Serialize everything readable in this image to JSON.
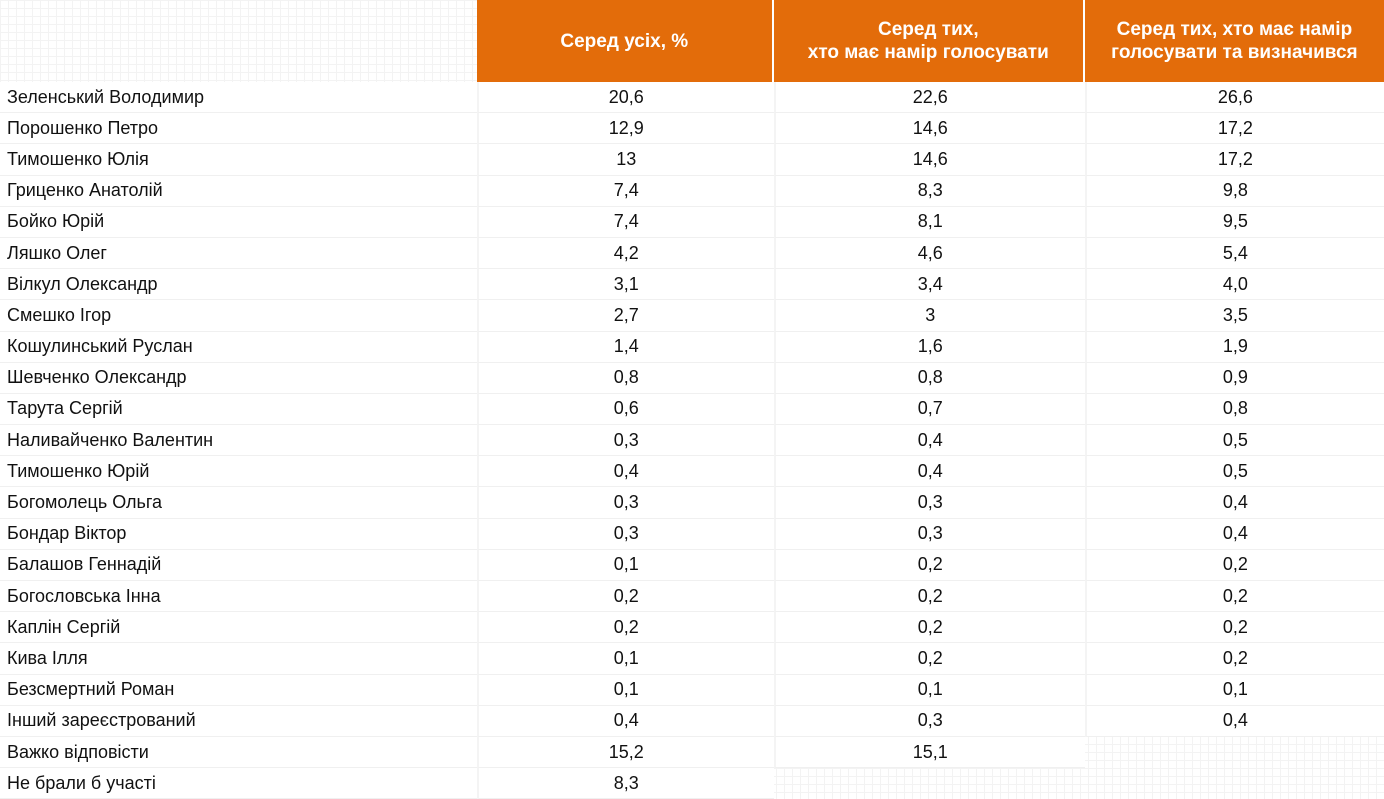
{
  "table": {
    "headers": [
      "Серед усіх, %",
      "Серед тих,\nхто має намір голосувати",
      "Серед тих, хто має намір\nголосувати та визначився"
    ],
    "rows": [
      {
        "name": "Зеленський Володимир",
        "values": [
          "20,6",
          "22,6",
          "26,6"
        ]
      },
      {
        "name": "Порошенко Петро",
        "values": [
          "12,9",
          "14,6",
          "17,2"
        ]
      },
      {
        "name": "Тимошенко Юлія",
        "values": [
          "13",
          "14,6",
          "17,2"
        ]
      },
      {
        "name": "Гриценко Анатолій",
        "values": [
          "7,4",
          "8,3",
          "9,8"
        ]
      },
      {
        "name": "Бойко Юрій",
        "values": [
          "7,4",
          "8,1",
          "9,5"
        ]
      },
      {
        "name": "Ляшко Олег",
        "values": [
          "4,2",
          "4,6",
          "5,4"
        ]
      },
      {
        "name": "Вілкул Олександр",
        "values": [
          "3,1",
          "3,4",
          "4,0"
        ]
      },
      {
        "name": "Смешко Ігор",
        "values": [
          "2,7",
          "3",
          "3,5"
        ]
      },
      {
        "name": "Кошулинський Руслан",
        "values": [
          "1,4",
          "1,6",
          "1,9"
        ]
      },
      {
        "name": "Шевченко Олександр",
        "values": [
          "0,8",
          "0,8",
          "0,9"
        ]
      },
      {
        "name": "Тарута Сергій",
        "values": [
          "0,6",
          "0,7",
          "0,8"
        ]
      },
      {
        "name": "Наливайченко Валентин",
        "values": [
          "0,3",
          "0,4",
          "0,5"
        ]
      },
      {
        "name": "Тимошенко Юрій",
        "values": [
          "0,4",
          "0,4",
          "0,5"
        ]
      },
      {
        "name": "Богомолець Ольга",
        "values": [
          "0,3",
          "0,3",
          "0,4"
        ]
      },
      {
        "name": "Бондар Віктор",
        "values": [
          "0,3",
          "0,3",
          "0,4"
        ]
      },
      {
        "name": "Балашов Геннадій",
        "values": [
          "0,1",
          "0,2",
          "0,2"
        ]
      },
      {
        "name": "Богословська Інна",
        "values": [
          "0,2",
          "0,2",
          "0,2"
        ]
      },
      {
        "name": "Каплін Сергій",
        "values": [
          "0,2",
          "0,2",
          "0,2"
        ]
      },
      {
        "name": "Кива Ілля",
        "values": [
          "0,1",
          "0,2",
          "0,2"
        ]
      },
      {
        "name": "Безсмертний Роман",
        "values": [
          "0,1",
          "0,1",
          "0,1"
        ]
      },
      {
        "name": "Інший зареєстрований",
        "values": [
          "0,4",
          "0,3",
          "0,4"
        ]
      },
      {
        "name": "Важко відповісти",
        "values": [
          "15,2",
          "15,1",
          null
        ]
      },
      {
        "name": "Не брали б участі",
        "values": [
          "8,3",
          null,
          null
        ]
      }
    ]
  }
}
